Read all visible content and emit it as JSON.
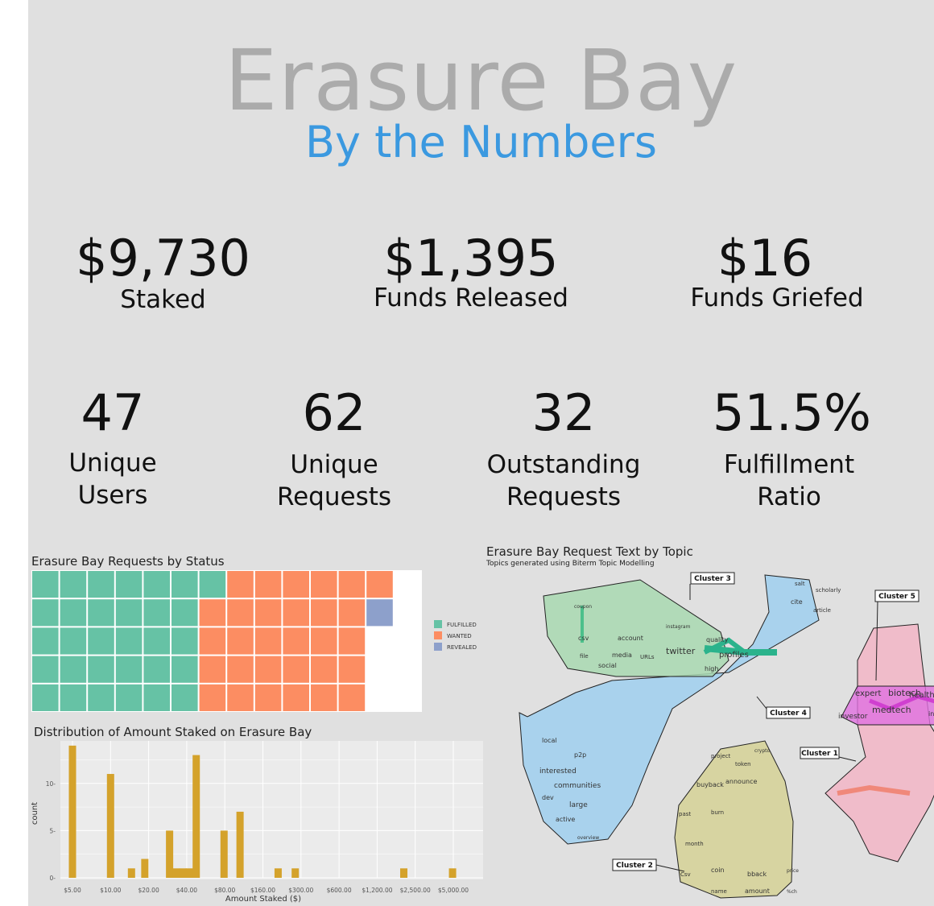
{
  "header": {
    "title": "Erasure Bay",
    "subtitle": "By the Numbers"
  },
  "stats_row1": [
    {
      "value": "$9,730",
      "label": "Staked"
    },
    {
      "value": "$1,395",
      "label": "Funds Released"
    },
    {
      "value": "$16",
      "label": "Funds Griefed"
    }
  ],
  "stats_row2": [
    {
      "value": "47",
      "label_line1": "Unique",
      "label_line2": "Users"
    },
    {
      "value": "62",
      "label_line1": "Unique",
      "label_line2": "Requests"
    },
    {
      "value": "32",
      "label_line1": "Outstanding",
      "label_line2": "Requests"
    },
    {
      "value": "51.5%",
      "label_line1": "Fulfillment",
      "label_line2": "Ratio"
    }
  ],
  "colors": {
    "fulfilled": "#66c2a5",
    "wanted": "#fc8d62",
    "revealed": "#8da0cb",
    "bar": "#d4a22b",
    "subtitle": "#3b99e0"
  },
  "chart_data": [
    {
      "type": "waffle",
      "title": "Erasure Bay Requests by Status",
      "categories": [
        "FULFILLED",
        "WANTED",
        "REVEALED"
      ],
      "values": [
        31,
        30,
        1
      ],
      "grid_rows": 5,
      "grid_cols": 14,
      "legend": "right"
    },
    {
      "type": "bar",
      "title": "Distribution of Amount Staked on Erasure Bay",
      "xlabel": "Amount Staked ($)",
      "ylabel": "count",
      "x_scale": "log",
      "x_ticks": [
        "$5.00",
        "$10.00",
        "$20.00",
        "$40.00",
        "$80.00",
        "$160.00",
        "$300.00",
        "$600.00",
        "$1,200.00",
        "$2,500.00",
        "$5,000.00"
      ],
      "y_ticks": [
        "0",
        "5",
        "10"
      ],
      "ylim": [
        0,
        14.5
      ],
      "bins_by_index": [
        {
          "at": 0.0,
          "count": 14
        },
        {
          "at": 1.0,
          "count": 11
        },
        {
          "at": 1.55,
          "count": 1
        },
        {
          "at": 1.9,
          "count": 2
        },
        {
          "at": 2.55,
          "count": 5
        },
        {
          "at": 2.72,
          "count": 1
        },
        {
          "at": 2.9,
          "count": 1
        },
        {
          "at": 3.07,
          "count": 1
        },
        {
          "at": 3.25,
          "count": 13
        },
        {
          "at": 3.98,
          "count": 5
        },
        {
          "at": 4.4,
          "count": 7
        },
        {
          "at": 5.4,
          "count": 1
        },
        {
          "at": 5.85,
          "count": 1
        },
        {
          "at": 8.7,
          "count": 1
        },
        {
          "at": 9.98,
          "count": 1
        }
      ],
      "grid": true
    },
    {
      "type": "network",
      "title": "Erasure Bay Request Text by Topic",
      "subtitle": "Topics generated using Biterm Topic Modelling",
      "clusters": [
        {
          "name": "Cluster 3",
          "color": "#a8d8b0",
          "words": [
            "coupon",
            "csv",
            "account",
            "instagram",
            "twitter",
            "quality",
            "profiles",
            "media",
            "URLs",
            "file",
            "social",
            "high"
          ]
        },
        {
          "name": "Cluster 4",
          "color": "#9fcfef",
          "words": [
            "salt",
            "scholarly",
            "cite",
            "article",
            "local",
            "p2p",
            "interested",
            "communities",
            "dev",
            "large",
            "active",
            "overview"
          ]
        },
        {
          "name": "Cluster 5",
          "color": "#f2b8c8",
          "words": [
            "expert",
            "biotech",
            "healthcare",
            "medtech",
            "investor",
            "industry"
          ]
        },
        {
          "name": "Cluster 1",
          "color": "#f2b8c8",
          "words": []
        },
        {
          "name": "Cluster 2",
          "color": "#d6d39a",
          "words": [
            "project",
            "crypto",
            "token",
            "buyback",
            "announce",
            "past",
            "burn",
            "month",
            "coin",
            "bback",
            "price",
            "Csv",
            "name",
            "amount",
            "%ch"
          ]
        }
      ]
    }
  ]
}
